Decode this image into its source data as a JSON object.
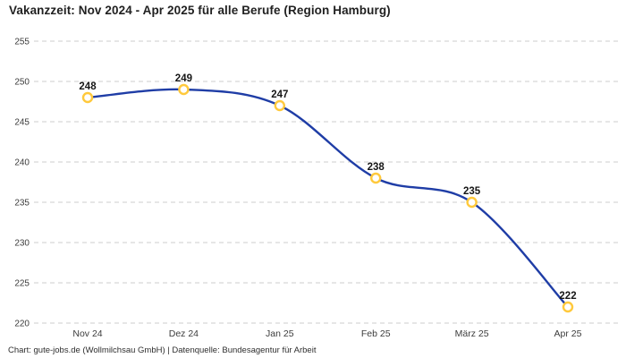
{
  "header": {
    "title": "Vakanzzeit: Nov 2024 - Apr 2025 für alle Berufe (Region Hamburg)"
  },
  "footer": {
    "credit": "Chart: gute-jobs.de (Wollmilchsau GmbH) | Datenquelle: Bundesagentur für Arbeit"
  },
  "colors": {
    "background": "#ffffff",
    "title_text": "#212121",
    "tick_text": "#3c3c3c",
    "value_label_text": "#161616",
    "grid": "#cdcdcd",
    "line": "#1f3da6",
    "marker_stroke": "#ffc93c",
    "marker_fill": "#ffffff"
  },
  "chart_data": {
    "type": "line",
    "title": "Vakanzzeit: Nov 2024 - Apr 2025 für alle Berufe (Region Hamburg)",
    "categories": [
      "Nov 24",
      "Dez 24",
      "Jan 25",
      "Feb 25",
      "März 25",
      "Apr 25"
    ],
    "values": [
      248,
      249,
      247,
      238,
      235,
      222
    ],
    "xlabel": "",
    "ylabel": "",
    "ylim": [
      220,
      255
    ],
    "yticks": [
      220,
      225,
      230,
      235,
      240,
      245,
      250,
      255
    ],
    "grid": "horizontal-dashed",
    "legend_position": "none",
    "smooth": true,
    "point_labels_visible": true
  }
}
